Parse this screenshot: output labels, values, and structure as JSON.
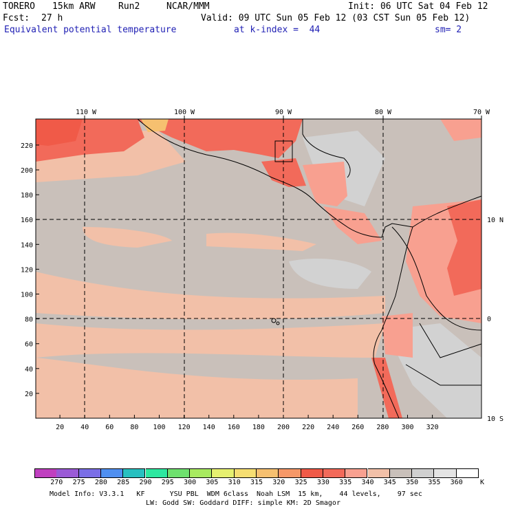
{
  "header": {
    "model": "TORERO",
    "resolution": "15km ARW",
    "run": "Run2",
    "center": "NCAR/MMM",
    "init": "Init: 06 UTC Sat 04 Feb 12",
    "fcst_label": "Fcst:",
    "fcst_value": "27 h",
    "valid": "Valid: 09 UTC Sun 05 Feb 12 (03 CST Sun 05 Feb 12)",
    "field": "Equivalent potential temperature",
    "level": "at k-index =  44",
    "smoothing": "sm= 2"
  },
  "map": {
    "top_lon_labels": [
      "110 W",
      "100 W",
      "90 W",
      "80 W",
      "70 W"
    ],
    "right_lat_labels": [
      "10 N",
      "0",
      "10 S"
    ],
    "y_ticks": [
      "220",
      "200",
      "180",
      "160",
      "140",
      "120",
      "100",
      "80",
      "60",
      "40",
      "20"
    ],
    "x_ticks": [
      "20",
      "40",
      "60",
      "80",
      "100",
      "120",
      "140",
      "160",
      "180",
      "200",
      "220",
      "240",
      "260",
      "280",
      "300",
      "320"
    ]
  },
  "legend": {
    "labels": [
      "270",
      "275",
      "280",
      "285",
      "290",
      "295",
      "300",
      "305",
      "310",
      "315",
      "320",
      "325",
      "330",
      "335",
      "340",
      "345",
      "350",
      "355",
      "360"
    ],
    "unit": "K",
    "colors": [
      "#c040c0",
      "#9a5ad6",
      "#7a6ee6",
      "#4f8ff0",
      "#28c0c0",
      "#2ee8a0",
      "#6ee06e",
      "#a8ea60",
      "#e6f070",
      "#f6de72",
      "#f6c070",
      "#f69868",
      "#f05a48",
      "#f26a5a",
      "#f8a090",
      "#f2c0a8",
      "#c9c0ba",
      "#d0d0d0",
      "#e4e4e4",
      "#ffffff"
    ]
  },
  "footer": {
    "line1": "Model Info: V3.3.1   KF      YSU PBL  WDM 6class  Noah LSM  15 km,    44 levels,    97 sec",
    "line2": "LW: Godd SW: Goddard DIFF: simple KM: 2D Smagor"
  }
}
